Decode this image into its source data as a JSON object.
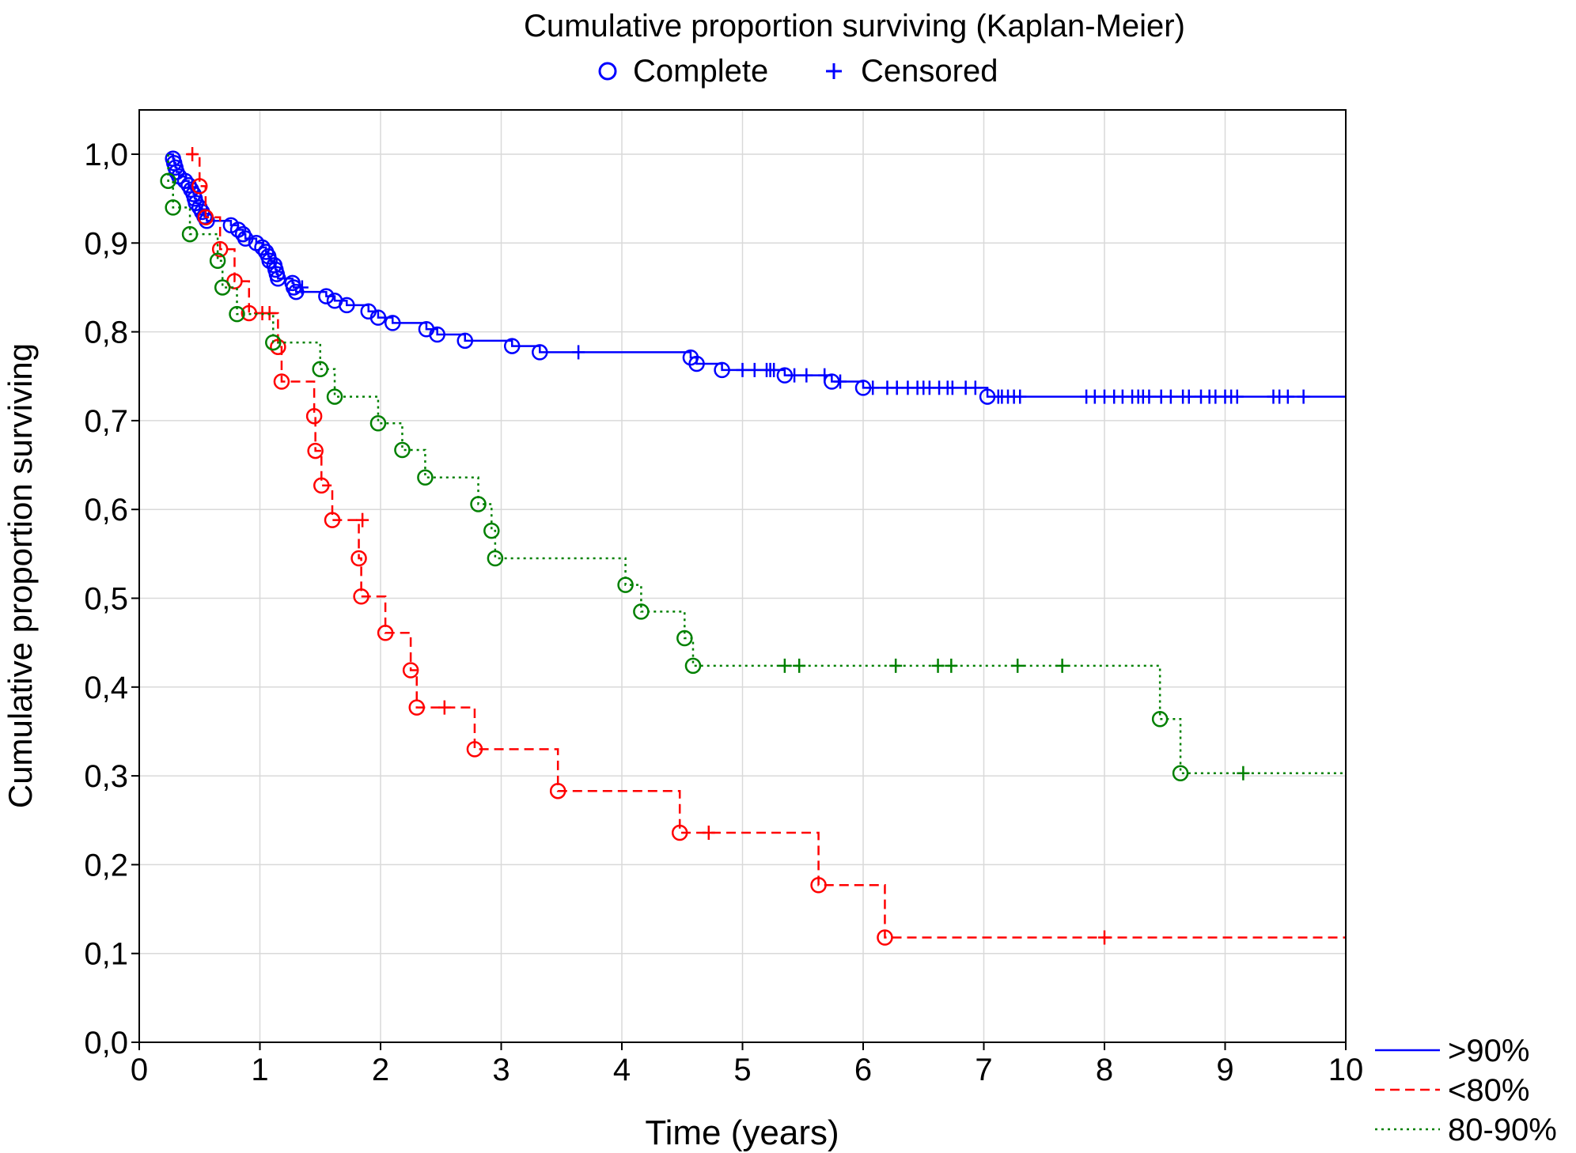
{
  "chart_data": {
    "type": "line",
    "title": "Cumulative proportion surviving (Kaplan-Meier)",
    "marker_legend": [
      {
        "symbol": "circle",
        "label": "Complete",
        "color": "#0000ff"
      },
      {
        "symbol": "plus",
        "label": "Censored",
        "color": "#0000ff"
      }
    ],
    "xlabel": "Time (years)",
    "ylabel": "Cumulative proportion surviving",
    "xlim": [
      0,
      10
    ],
    "ylim": [
      0,
      1.05
    ],
    "xticks": [
      "0",
      "1",
      "2",
      "3",
      "4",
      "5",
      "6",
      "7",
      "8",
      "9",
      "10"
    ],
    "yticks": [
      "0,0",
      "0,1",
      "0,2",
      "0,3",
      "0,4",
      "0,5",
      "0,6",
      "0,7",
      "0,8",
      "0,9",
      "1,0"
    ],
    "grid": true,
    "legend_position": "bottom-right outside",
    "series": [
      {
        "name": ">90%",
        "color": "#0000ff",
        "style": "solid",
        "events": [
          [
            0.28,
            0.995
          ],
          [
            0.29,
            0.99
          ],
          [
            0.3,
            0.985
          ],
          [
            0.31,
            0.98
          ],
          [
            0.33,
            0.975
          ],
          [
            0.38,
            0.97
          ],
          [
            0.41,
            0.965
          ],
          [
            0.43,
            0.96
          ],
          [
            0.45,
            0.955
          ],
          [
            0.46,
            0.95
          ],
          [
            0.47,
            0.945
          ],
          [
            0.5,
            0.94
          ],
          [
            0.52,
            0.935
          ],
          [
            0.54,
            0.93
          ],
          [
            0.56,
            0.925
          ],
          [
            0.76,
            0.92
          ],
          [
            0.82,
            0.915
          ],
          [
            0.86,
            0.91
          ],
          [
            0.88,
            0.905
          ],
          [
            0.97,
            0.9
          ],
          [
            1.02,
            0.895
          ],
          [
            1.05,
            0.89
          ],
          [
            1.07,
            0.885
          ],
          [
            1.08,
            0.88
          ],
          [
            1.12,
            0.875
          ],
          [
            1.13,
            0.87
          ],
          [
            1.14,
            0.865
          ],
          [
            1.15,
            0.86
          ],
          [
            1.27,
            0.855
          ],
          [
            1.28,
            0.85
          ],
          [
            1.3,
            0.845
          ],
          [
            1.55,
            0.84
          ],
          [
            1.62,
            0.835
          ],
          [
            1.72,
            0.83
          ],
          [
            1.9,
            0.823
          ],
          [
            1.98,
            0.816
          ],
          [
            2.1,
            0.81
          ],
          [
            2.38,
            0.803
          ],
          [
            2.47,
            0.797
          ],
          [
            2.7,
            0.79
          ],
          [
            3.09,
            0.784
          ],
          [
            3.32,
            0.777
          ],
          [
            4.57,
            0.771
          ],
          [
            4.62,
            0.764
          ],
          [
            4.83,
            0.757
          ],
          [
            5.35,
            0.751
          ],
          [
            5.74,
            0.744
          ],
          [
            6.0,
            0.737
          ],
          [
            7.03,
            0.727
          ]
        ],
        "censored": [
          [
            1.35,
            0.85
          ],
          [
            3.64,
            0.777
          ],
          [
            5.0,
            0.757
          ],
          [
            5.1,
            0.757
          ],
          [
            5.2,
            0.757
          ],
          [
            5.23,
            0.757
          ],
          [
            5.26,
            0.757
          ],
          [
            5.43,
            0.751
          ],
          [
            5.53,
            0.751
          ],
          [
            5.68,
            0.751
          ],
          [
            5.81,
            0.744
          ],
          [
            6.08,
            0.737
          ],
          [
            6.2,
            0.737
          ],
          [
            6.28,
            0.737
          ],
          [
            6.37,
            0.737
          ],
          [
            6.45,
            0.737
          ],
          [
            6.5,
            0.737
          ],
          [
            6.55,
            0.737
          ],
          [
            6.63,
            0.737
          ],
          [
            6.7,
            0.737
          ],
          [
            6.74,
            0.737
          ],
          [
            6.85,
            0.737
          ],
          [
            6.93,
            0.737
          ],
          [
            7.12,
            0.727
          ],
          [
            7.15,
            0.727
          ],
          [
            7.2,
            0.727
          ],
          [
            7.25,
            0.727
          ],
          [
            7.3,
            0.727
          ],
          [
            7.85,
            0.727
          ],
          [
            7.92,
            0.727
          ],
          [
            8.0,
            0.727
          ],
          [
            8.08,
            0.727
          ],
          [
            8.15,
            0.727
          ],
          [
            8.23,
            0.727
          ],
          [
            8.28,
            0.727
          ],
          [
            8.32,
            0.727
          ],
          [
            8.37,
            0.727
          ],
          [
            8.47,
            0.727
          ],
          [
            8.55,
            0.727
          ],
          [
            8.65,
            0.727
          ],
          [
            8.7,
            0.727
          ],
          [
            8.8,
            0.727
          ],
          [
            8.87,
            0.727
          ],
          [
            8.92,
            0.727
          ],
          [
            9.0,
            0.727
          ],
          [
            9.05,
            0.727
          ],
          [
            9.1,
            0.727
          ],
          [
            9.4,
            0.727
          ],
          [
            9.45,
            0.727
          ],
          [
            9.52,
            0.727
          ],
          [
            9.65,
            0.727
          ]
        ]
      },
      {
        "name": "<80%",
        "color": "#ff0000",
        "style": "dashed",
        "events": [
          [
            0.5,
            0.964
          ],
          [
            0.55,
            0.929
          ],
          [
            0.67,
            0.893
          ],
          [
            0.79,
            0.857
          ],
          [
            0.91,
            0.821
          ],
          [
            1.15,
            0.783
          ],
          [
            1.18,
            0.744
          ],
          [
            1.45,
            0.705
          ],
          [
            1.46,
            0.666
          ],
          [
            1.51,
            0.627
          ],
          [
            1.6,
            0.588
          ],
          [
            1.82,
            0.545
          ],
          [
            1.84,
            0.502
          ],
          [
            2.04,
            0.461
          ],
          [
            2.25,
            0.419
          ],
          [
            2.3,
            0.377
          ],
          [
            2.78,
            0.33
          ],
          [
            3.47,
            0.283
          ],
          [
            4.48,
            0.236
          ],
          [
            5.63,
            0.177
          ],
          [
            6.18,
            0.118
          ]
        ],
        "censored": [
          [
            0.44,
            1.0
          ],
          [
            1.02,
            0.821
          ],
          [
            1.08,
            0.821
          ],
          [
            1.85,
            0.588
          ],
          [
            2.53,
            0.377
          ],
          [
            4.72,
            0.236
          ],
          [
            8.0,
            0.118
          ]
        ]
      },
      {
        "name": "80-90%",
        "color": "#008000",
        "style": "dotted",
        "events": [
          [
            0.24,
            0.97
          ],
          [
            0.28,
            0.94
          ],
          [
            0.42,
            0.91
          ],
          [
            0.65,
            0.88
          ],
          [
            0.69,
            0.85
          ],
          [
            0.81,
            0.82
          ],
          [
            1.11,
            0.788
          ],
          [
            1.5,
            0.758
          ],
          [
            1.62,
            0.727
          ],
          [
            1.98,
            0.697
          ],
          [
            2.18,
            0.667
          ],
          [
            2.37,
            0.636
          ],
          [
            2.81,
            0.606
          ],
          [
            2.92,
            0.576
          ],
          [
            2.95,
            0.545
          ],
          [
            4.03,
            0.515
          ],
          [
            4.16,
            0.485
          ],
          [
            4.52,
            0.455
          ],
          [
            4.59,
            0.424
          ],
          [
            8.46,
            0.364
          ],
          [
            8.63,
            0.303
          ]
        ],
        "censored": [
          [
            5.35,
            0.424
          ],
          [
            5.47,
            0.424
          ],
          [
            6.27,
            0.424
          ],
          [
            6.62,
            0.424
          ],
          [
            6.73,
            0.424
          ],
          [
            7.28,
            0.424
          ],
          [
            7.65,
            0.424
          ],
          [
            9.15,
            0.303
          ]
        ]
      }
    ]
  }
}
